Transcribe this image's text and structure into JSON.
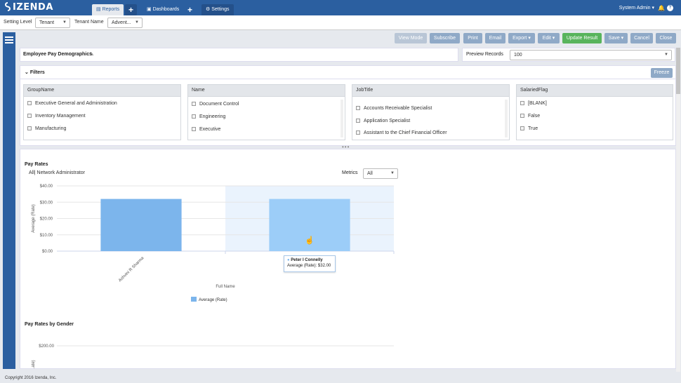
{
  "app": {
    "logo": "IZENDA",
    "tabs": {
      "reports": "Reports",
      "dashboards": "Dashboards",
      "settings": "Settings"
    },
    "user": "System Admin ▾",
    "bell_icon": "bell-icon",
    "help_icon": "help-icon"
  },
  "settings_bar": {
    "setting_level_label": "Setting Level",
    "setting_level_value": "Tenant",
    "tenant_name_label": "Tenant Name",
    "tenant_name_value": "Advent..."
  },
  "toolbar": {
    "view_mode": "View Mode",
    "subscribe": "Subscribe",
    "print": "Print",
    "email": "Email",
    "export": "Export ▾",
    "edit": "Edit ▾",
    "update_result": "Update Result",
    "save": "Save ▾",
    "cancel": "Cancel",
    "close": "Close"
  },
  "report": {
    "title": "Employee Pay Demographics",
    "preview_label": "Preview Records",
    "preview_value": "100"
  },
  "filters": {
    "label": "Filters",
    "freeze": "Freeze",
    "columns": [
      {
        "header": "GroupName",
        "items": [
          "Executive General and Administration",
          "Inventory Management",
          "Manufacturing"
        ]
      },
      {
        "header": "Name",
        "items": [
          "Document Control",
          "Engineering",
          "Executive"
        ]
      },
      {
        "header": "JobTitle",
        "items": [
          "Accounts Receivable Specialist",
          "Application Specialist",
          "Assistant to the Chief Financial Officer"
        ]
      },
      {
        "header": "SalariedFlag",
        "items": [
          "[BLANK]",
          "False",
          "True"
        ]
      }
    ]
  },
  "chart1": {
    "title": "Pay Rates",
    "breadcrumb": "All| Network Administrator",
    "metrics_label": "Metrics",
    "metrics_value": "All",
    "tooltip_name": "Peter I Connelly",
    "tooltip_value": "Average (Rate): $32.00",
    "legend": "Average (Rate)"
  },
  "chart_data": [
    {
      "type": "bar",
      "title": "Pay Rates",
      "xlabel": "Full Name",
      "ylabel": "Average (Rate)",
      "yticks": [
        "$40.00",
        "$30.00",
        "$20.00",
        "$10.00",
        "$0.00"
      ],
      "categories": [
        "Ashvini R Sharma",
        "Pe..."
      ],
      "series": [
        {
          "name": "Average (Rate)",
          "values": [
            32,
            32
          ]
        }
      ],
      "ylim": [
        0,
        40
      ],
      "colors": [
        "#7cb5ec",
        "#9ccdf8"
      ]
    },
    {
      "type": "bar",
      "title": "Pay Rates by Gender",
      "ylabel": "...ate)",
      "yticks": [
        "$200.00"
      ]
    }
  ],
  "chart2": {
    "title": "Pay Rates by Gender"
  },
  "footer": {
    "copyright": "Copyright 2016 Izenda, Inc."
  },
  "colors": {
    "brand": "#2b5fa0",
    "accent_green": "#58b45c",
    "bar": "#7cb5ec",
    "bar_hover": "#9ccdf8"
  }
}
